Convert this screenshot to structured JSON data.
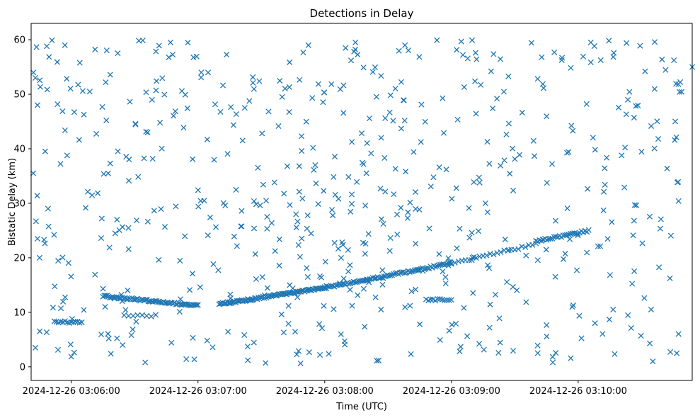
{
  "chart_data": {
    "type": "scatter",
    "title": "Detections in Delay",
    "xlabel": "Time (UTC)",
    "ylabel": "Bistatic Delay (km)",
    "marker": "x",
    "color": "#1f77b4",
    "grid": false,
    "x_tick_labels": [
      "2024-12-26 03:06:00",
      "2024-12-26 03:07:00",
      "2024-12-26 03:08:00",
      "2024-12-26 03:09:00",
      "2024-12-26 03:10:00"
    ],
    "y_tick_labels": [
      "0",
      "10",
      "20",
      "30",
      "40",
      "50",
      "60"
    ],
    "xlim": [
      "2024-12-26 03:05:41",
      "2024-12-26 03:10:54"
    ],
    "ylim": [
      -2.5,
      63
    ],
    "track_segments": [
      {
        "t_start": "2024-12-26 03:05:52",
        "t_end": "2024-12-26 03:06:05",
        "delay_start": 8.2,
        "delay_end": 8.2,
        "count": 14
      },
      {
        "t_start": "2024-12-26 03:06:15",
        "t_end": "2024-12-26 03:07:00",
        "delay_start": 13.0,
        "delay_end": 11.2,
        "count": 70
      },
      {
        "t_start": "2024-12-26 03:07:10",
        "t_end": "2024-12-26 03:08:00",
        "delay_start": 11.5,
        "delay_end": 14.5,
        "count": 90
      },
      {
        "t_start": "2024-12-26 03:08:00",
        "t_end": "2024-12-26 03:09:00",
        "delay_start": 14.5,
        "delay_end": 19.0,
        "count": 80
      },
      {
        "t_start": "2024-12-26 03:09:00",
        "t_end": "2024-12-26 03:09:40",
        "delay_start": 19.0,
        "delay_end": 22.5,
        "count": 25
      },
      {
        "t_start": "2024-12-26 03:09:40",
        "t_end": "2024-12-26 03:10:05",
        "delay_start": 23.0,
        "delay_end": 25.0,
        "count": 30
      },
      {
        "t_start": "2024-12-26 03:08:48",
        "t_end": "2024-12-26 03:09:00",
        "delay_start": 12.3,
        "delay_end": 12.3,
        "count": 12
      },
      {
        "t_start": "2024-12-26 03:06:25",
        "t_end": "2024-12-26 03:06:40",
        "delay_start": 9.4,
        "delay_end": 9.4,
        "count": 8
      }
    ],
    "clutter": {
      "description_free_stats": true,
      "t_range": [
        "2024-12-26 03:05:41",
        "2024-12-26 03:10:49"
      ],
      "delay_range": [
        0.5,
        60
      ],
      "count": 600
    },
    "sample_points": [
      {
        "t": "2024-12-26 03:05:42",
        "delay": 35.5
      },
      {
        "t": "2024-12-26 03:05:43",
        "delay": 3.5
      },
      {
        "t": "2024-12-26 03:05:43",
        "delay": 53.0
      },
      {
        "t": "2024-12-26 03:05:44",
        "delay": 48.0
      },
      {
        "t": "2024-12-26 03:05:44",
        "delay": 23.5
      },
      {
        "t": "2024-12-26 03:05:45",
        "delay": 20.0
      },
      {
        "t": "2024-12-26 03:05:49",
        "delay": 29.0
      },
      {
        "t": "2024-12-26 03:05:57",
        "delay": 59.0
      },
      {
        "t": "2024-12-26 03:06:47",
        "delay": 59.5
      },
      {
        "t": "2024-12-26 03:08:38",
        "delay": 59.0
      },
      {
        "t": "2024-12-26 03:10:06",
        "delay": 59.5
      },
      {
        "t": "2024-12-26 03:10:54",
        "delay": 55.0
      },
      {
        "t": "2024-12-26 03:07:32",
        "delay": 0.7
      },
      {
        "t": "2024-12-26 03:06:35",
        "delay": 0.8
      },
      {
        "t": "2024-12-26 03:09:48",
        "delay": 0.8
      }
    ]
  }
}
